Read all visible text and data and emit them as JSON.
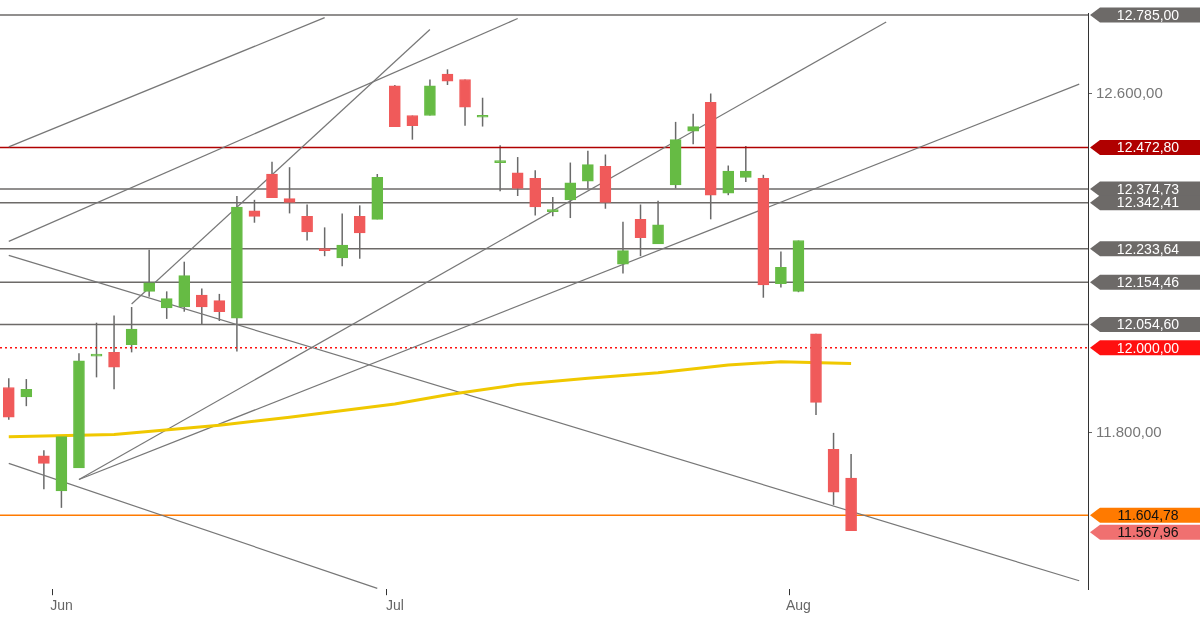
{
  "chart_data": {
    "type": "candlestick",
    "categories": [
      null,
      null,
      null,
      "Jun",
      null,
      null,
      null,
      null,
      null,
      null,
      null,
      null,
      null,
      null,
      null,
      null,
      null,
      null,
      null,
      null,
      null,
      null,
      "Jul",
      null,
      null,
      null,
      null,
      null,
      null,
      null,
      null,
      null,
      null,
      null,
      null,
      null,
      null,
      null,
      null,
      null,
      null,
      null,
      null,
      null,
      null,
      "Aug",
      null,
      null,
      null,
      null,
      null,
      null,
      null,
      null,
      null,
      null,
      null,
      null,
      null,
      null,
      null,
      null
    ],
    "ohlc": [
      [
        11906,
        11928,
        11830,
        11836
      ],
      [
        11884,
        11926,
        11862,
        11902
      ],
      [
        11745,
        11758,
        11666,
        11727
      ],
      [
        11662,
        11793,
        11622,
        11790
      ],
      [
        11716,
        11987,
        11716,
        11969
      ],
      [
        11980,
        12059,
        11930,
        11980
      ],
      [
        11989,
        12076,
        11902,
        11954
      ],
      [
        12007,
        12096,
        11989,
        12044
      ],
      [
        12133,
        12231,
        12120,
        12153
      ],
      [
        12094,
        12133,
        12068,
        12116
      ],
      [
        12096,
        12203,
        12085,
        12170
      ],
      [
        12124,
        12140,
        12055,
        12096
      ],
      [
        12111,
        12127,
        12063,
        12085
      ],
      [
        12070,
        12358,
        11991,
        12332
      ],
      [
        12323,
        12349,
        12295,
        12310
      ],
      [
        12410,
        12439,
        12354,
        12354
      ],
      [
        12352,
        12426,
        12317,
        12343
      ],
      [
        12310,
        12338,
        12253,
        12273
      ],
      [
        12232,
        12284,
        12216,
        12229
      ],
      [
        12212,
        12317,
        12192,
        12242
      ],
      [
        12310,
        12336,
        12210,
        12271
      ],
      [
        12303,
        12410,
        12303,
        12402
      ],
      [
        12618,
        12620,
        12522,
        12522
      ],
      [
        12548,
        12548,
        12491,
        12524
      ],
      [
        12548,
        12633,
        12548,
        12618
      ],
      [
        12646,
        12657,
        12620,
        12629
      ],
      [
        12633,
        12633,
        12524,
        12568
      ],
      [
        12544,
        12590,
        12522,
        12544
      ],
      [
        12437,
        12478,
        12369,
        12437
      ],
      [
        12413,
        12450,
        12358,
        12376
      ],
      [
        12400,
        12419,
        12312,
        12332
      ],
      [
        12321,
        12356,
        12310,
        12321
      ],
      [
        12349,
        12437,
        12306,
        12389
      ],
      [
        12393,
        12465,
        12376,
        12432
      ],
      [
        12428,
        12456,
        12328,
        12343
      ],
      [
        12197,
        12297,
        12175,
        12229
      ],
      [
        12303,
        12338,
        12216,
        12260
      ],
      [
        12245,
        12347,
        12245,
        12290
      ],
      [
        12384,
        12533,
        12376,
        12491
      ],
      [
        12511,
        12552,
        12480,
        12522
      ],
      [
        12579,
        12600,
        12303,
        12360
      ],
      [
        12365,
        12430,
        12360,
        12417
      ],
      [
        12402,
        12476,
        12391,
        12417
      ],
      [
        12400,
        12408,
        12118,
        12148
      ],
      [
        12151,
        12227,
        12142,
        12190
      ],
      [
        12133,
        12253,
        12131,
        12253
      ],
      [
        12033,
        12033,
        11841,
        11871
      ],
      [
        11760,
        11799,
        11629,
        11659
      ],
      [
        11692,
        11749,
        11568,
        11568
      ],
      null,
      null,
      null,
      null,
      null,
      null,
      null,
      null,
      null,
      null,
      null,
      null,
      null
    ],
    "colors": [
      "#f05a5a",
      "#66bb44",
      "#f05a5a",
      "#66bb44",
      "#66bb44",
      "#66bb44",
      "#f05a5a",
      "#66bb44",
      "#66bb44",
      "#66bb44",
      "#66bb44",
      "#f05a5a",
      "#f05a5a",
      "#66bb44",
      "#f05a5a",
      "#f05a5a",
      "#f05a5a",
      "#f05a5a",
      "#f05a5a",
      "#66bb44",
      "#f05a5a",
      "#66bb44",
      "#f05a5a",
      "#f05a5a",
      "#66bb44",
      "#f05a5a",
      "#f05a5a",
      "#66bb44",
      "#66bb44",
      "#f05a5a",
      "#f05a5a",
      "#66bb44",
      "#66bb44",
      "#66bb44",
      "#f05a5a",
      "#66bb44",
      "#f05a5a",
      "#66bb44",
      "#66bb44",
      "#66bb44",
      "#f05a5a",
      "#66bb44",
      "#66bb44",
      "#f05a5a",
      "#66bb44",
      "#66bb44",
      "#f05a5a",
      "#f05a5a",
      "#f05a5a",
      null,
      null,
      null,
      null,
      null,
      null,
      null,
      null,
      null,
      null,
      null,
      null,
      null
    ],
    "series": [
      {
        "type": "line",
        "color": "#f0c800",
        "values": [
          11790,
          null,
          null,
          null,
          null,
          null,
          11795,
          null,
          null,
          null,
          null,
          null,
          11817,
          null,
          null,
          null,
          11836,
          null,
          null,
          null,
          null,
          null,
          11867,
          null,
          null,
          11889,
          null,
          null,
          null,
          11913,
          null,
          null,
          null,
          11928,
          null,
          null,
          null,
          11941,
          null,
          null,
          null,
          11959,
          null,
          null,
          11967,
          null,
          null,
          null,
          11963,
          null,
          null,
          null,
          null,
          null,
          null,
          null,
          null,
          null,
          null,
          null,
          null,
          null
        ]
      },
      {
        "type": "line",
        "color": "#777777",
        "values": [
          null,
          null,
          null,
          null,
          11689,
          null,
          null,
          null,
          null,
          null,
          null,
          null,
          null,
          null,
          null,
          null,
          null,
          null,
          null,
          null,
          null,
          null,
          null,
          null,
          null,
          null,
          null,
          null,
          null,
          null,
          null,
          null,
          null,
          null,
          null,
          null,
          null,
          null,
          null,
          null,
          null,
          null,
          null,
          null,
          null,
          null,
          null,
          null,
          null,
          null,
          null,
          null,
          null,
          null,
          null,
          null,
          null,
          null,
          null,
          null,
          null,
          12622
        ]
      },
      {
        "type": "line",
        "color": "#777777",
        "values": [
          null,
          null,
          null,
          null,
          11689,
          null,
          null,
          null,
          null,
          null,
          null,
          null,
          null,
          null,
          null,
          null,
          null,
          null,
          null,
          null,
          null,
          null,
          null,
          null,
          null,
          null,
          null,
          null,
          null,
          null,
          null,
          null,
          null,
          null,
          null,
          null,
          null,
          null,
          null,
          null,
          null,
          null,
          null,
          null,
          null,
          null,
          null,
          null,
          null,
          null,
          12769,
          null,
          null,
          null,
          null,
          null,
          null,
          null,
          null,
          null,
          null,
          null
        ]
      },
      {
        "type": "line",
        "color": "#777777",
        "values": [
          12218,
          null,
          null,
          null,
          null,
          null,
          null,
          null,
          null,
          null,
          null,
          null,
          null,
          null,
          null,
          null,
          null,
          null,
          null,
          null,
          null,
          null,
          null,
          null,
          null,
          null,
          null,
          null,
          null,
          null,
          null,
          null,
          null,
          null,
          null,
          null,
          null,
          null,
          null,
          null,
          null,
          null,
          null,
          null,
          null,
          null,
          null,
          null,
          null,
          null,
          null,
          null,
          null,
          null,
          null,
          null,
          null,
          null,
          null,
          null,
          null,
          11450
        ]
      },
      {
        "type": "line",
        "color": "#777777",
        "values": [
          11727,
          null,
          null,
          null,
          null,
          null,
          null,
          null,
          null,
          null,
          null,
          null,
          null,
          null,
          null,
          null,
          null,
          null,
          null,
          null,
          null,
          11432,
          null,
          null,
          null,
          null,
          null,
          null,
          null,
          null,
          null,
          null,
          null,
          null,
          null,
          null,
          null,
          null,
          null,
          null,
          null,
          null,
          null,
          null,
          null,
          null,
          null,
          null,
          null,
          null,
          null,
          null,
          null,
          null,
          null,
          null,
          null,
          null,
          null,
          null,
          null,
          null
        ]
      },
      {
        "type": "line",
        "color": "#777777",
        "values": [
          12474,
          null,
          null,
          null,
          null,
          null,
          null,
          null,
          null,
          null,
          null,
          null,
          null,
          null,
          null,
          null,
          null,
          null,
          12779,
          null,
          null,
          null,
          null,
          null,
          null,
          null,
          null,
          null,
          null,
          null,
          null,
          null,
          null,
          null,
          null,
          null,
          null,
          null,
          null,
          null,
          null,
          null,
          null,
          null,
          null,
          null,
          null,
          null,
          null,
          null,
          null,
          null,
          null,
          null,
          null,
          null,
          null,
          null,
          null,
          null,
          null,
          null
        ]
      },
      {
        "type": "line",
        "color": "#777777",
        "values": [
          12251,
          null,
          null,
          null,
          null,
          null,
          null,
          null,
          null,
          null,
          null,
          null,
          null,
          null,
          null,
          null,
          null,
          null,
          null,
          null,
          null,
          null,
          null,
          null,
          null,
          null,
          null,
          null,
          null,
          12777,
          null,
          null,
          null,
          null,
          null,
          null,
          null,
          null,
          null,
          null,
          null,
          null,
          null,
          null,
          null,
          null,
          null,
          null,
          null,
          null,
          null,
          null,
          null,
          null,
          null,
          null,
          null,
          null,
          null,
          null,
          null,
          null
        ]
      },
      {
        "type": "line",
        "color": "#777777",
        "values": [
          null,
          null,
          null,
          null,
          null,
          null,
          null,
          12103,
          null,
          null,
          null,
          null,
          null,
          null,
          null,
          null,
          null,
          null,
          null,
          null,
          null,
          null,
          null,
          null,
          12751,
          null,
          null,
          null,
          null,
          null,
          null,
          null,
          null,
          null,
          null,
          null,
          null,
          null,
          null,
          null,
          null,
          null,
          null,
          null,
          null,
          null,
          null,
          null,
          null,
          null,
          null,
          null,
          null,
          null,
          null,
          null,
          null,
          null,
          null,
          null,
          null,
          null
        ]
      }
    ],
    "ylim": [
      11430,
      12790
    ],
    "yticks": [
      {
        "value": 11800,
        "label": "11.800,00"
      },
      {
        "value": 12600,
        "label": "12.600,00"
      }
    ],
    "ref_lines": [
      {
        "axis": "y",
        "value": 12785,
        "label": "12.785,00",
        "color": "#6d6a68"
      },
      {
        "axis": "y",
        "value": 12472.8,
        "label": "12.472,80",
        "color": "#b00000"
      },
      {
        "axis": "y",
        "value": 12374.73,
        "label": "12.374,73",
        "color": "#6d6a68"
      },
      {
        "axis": "y",
        "value": 12342.41,
        "label": "12.342,41",
        "color": "#6d6a68"
      },
      {
        "axis": "y",
        "value": 12233.64,
        "label": "12.233,64",
        "color": "#6d6a68"
      },
      {
        "axis": "y",
        "value": 12154.46,
        "label": "12.154,46",
        "color": "#6d6a68"
      },
      {
        "axis": "y",
        "value": 12054.6,
        "label": "12.054,60",
        "color": "#6d6a68"
      },
      {
        "axis": "y",
        "value": 12000,
        "label": "12.000,00",
        "color": "#ff1010",
        "line_style": "dotted"
      },
      {
        "axis": "y",
        "value": 11604.78,
        "label": "11.604,78",
        "color": "#ff7a00"
      }
    ],
    "annotations": [
      "11.567,96"
    ],
    "grid": false,
    "legend": false
  }
}
